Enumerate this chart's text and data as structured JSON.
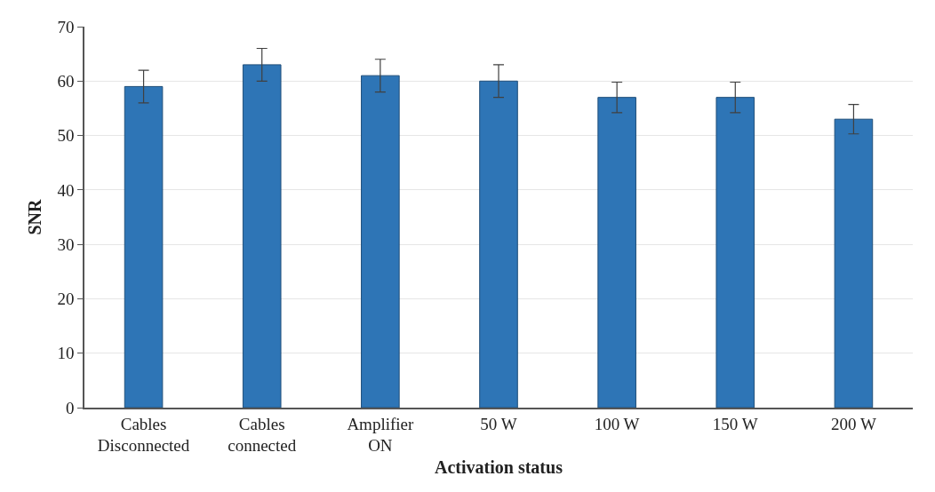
{
  "chart_data": {
    "type": "bar",
    "xlabel": "Activation status",
    "ylabel": "SNR",
    "categories": [
      "Cables Disconnected",
      "Cables connected",
      "Amplifier ON",
      "50 W",
      "100 W",
      "150 W",
      "200 W"
    ],
    "values": [
      59,
      63,
      61,
      60,
      57,
      57,
      53
    ],
    "errors": [
      3,
      3,
      3,
      3,
      2.8,
      2.8,
      2.7
    ],
    "color": "#2e75b6",
    "ylim": [
      0,
      70
    ],
    "yticks": [
      0,
      10,
      20,
      30,
      40,
      50,
      60,
      70
    ],
    "grid": "y"
  }
}
